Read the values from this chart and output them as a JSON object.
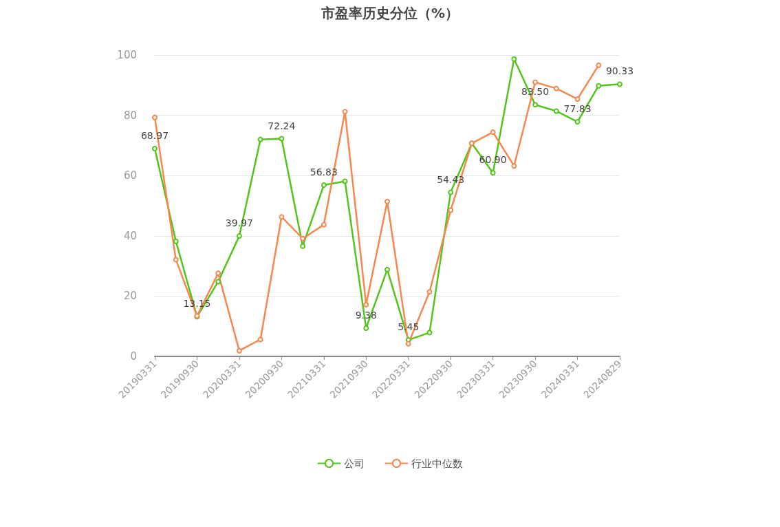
{
  "chart_data": {
    "type": "line",
    "title": "市盈率历史分位（%）",
    "categories": [
      "20190331",
      null,
      "20190930",
      null,
      "20200331",
      null,
      "20200930",
      null,
      "20210331",
      null,
      "20210930",
      null,
      "20220331",
      null,
      "20220930",
      null,
      "20230331",
      null,
      "20230930",
      null,
      "20240331",
      null,
      "20240829"
    ],
    "series": [
      {
        "name": "公司",
        "color": "#52c41a",
        "values": [
          68.97,
          38.2,
          13.15,
          24.8,
          39.97,
          72.0,
          72.24,
          36.6,
          56.83,
          58.1,
          9.38,
          28.8,
          5.45,
          7.9,
          54.43,
          70.7,
          60.9,
          98.7,
          83.5,
          81.4,
          77.83,
          89.8,
          90.33
        ],
        "value_labels": [
          "68.97",
          null,
          "13.15",
          null,
          "39.97",
          null,
          "72.24",
          null,
          "56.83",
          null,
          "9.38",
          null,
          "5.45",
          null,
          "54.43",
          null,
          "60.90",
          null,
          "83.50",
          null,
          "77.83",
          null,
          "90.33"
        ]
      },
      {
        "name": "行业中位数",
        "color": "#f5874f",
        "values": [
          79.3,
          32.1,
          13.4,
          27.6,
          1.9,
          5.6,
          46.3,
          39.1,
          43.7,
          81.2,
          17.2,
          51.4,
          4.2,
          21.4,
          48.5,
          70.7,
          74.4,
          63.2,
          91.0,
          88.9,
          85.4,
          96.6,
          null
        ]
      }
    ],
    "ylim": [
      0,
      100
    ],
    "yticks": [
      0,
      20,
      40,
      60,
      80,
      100
    ],
    "grid": "y",
    "legend": "bottom",
    "marker": "circle",
    "line_style": "solid"
  }
}
